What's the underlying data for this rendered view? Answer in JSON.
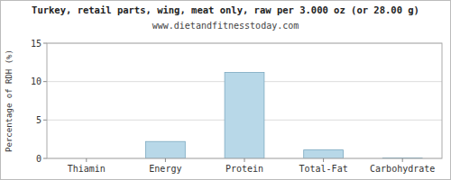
{
  "chart_data": {
    "type": "bar",
    "title": "Turkey, retail parts, wing, meat only, raw per 3.000 oz (or 28.00 g)",
    "subtitle": "www.dietandfitnesstoday.com",
    "categories": [
      "Thiamin",
      "Energy",
      "Protein",
      "Total-Fat",
      "Carbohydrate"
    ],
    "values": [
      0.0,
      2.2,
      11.2,
      1.1,
      0.05
    ],
    "color": "#b8d8e8",
    "ylabel": "Percentage of RDH (%)",
    "ylim": [
      0,
      15
    ],
    "yticks": [
      0,
      5,
      10,
      15
    ],
    "grid": true
  }
}
